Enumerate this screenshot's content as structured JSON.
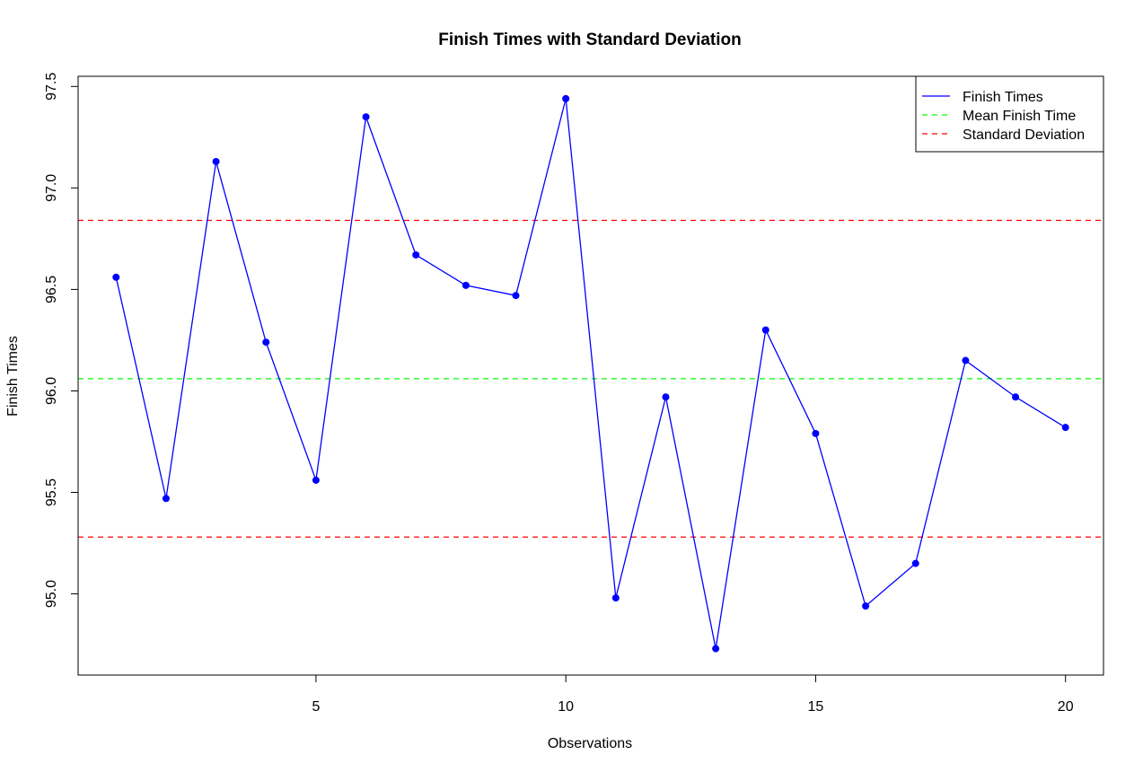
{
  "chart_data": {
    "type": "line",
    "title": "Finish Times with Standard Deviation",
    "xlabel": "Observations",
    "ylabel": "Finish Times",
    "xlim": [
      0.24,
      20.76
    ],
    "ylim": [
      94.6,
      97.55
    ],
    "xticks": [
      5,
      10,
      15,
      20
    ],
    "yticks": [
      95.0,
      95.5,
      96.0,
      96.5,
      97.0,
      97.5
    ],
    "ytick_labels": [
      "95.0",
      "95.5",
      "96.0",
      "96.5",
      "97.0",
      "97.5"
    ],
    "grid": false,
    "legend_position": "top-right",
    "series": [
      {
        "name": "Finish Times",
        "color": "#0000ff",
        "style": "line-with-points",
        "x": [
          1,
          2,
          3,
          4,
          5,
          6,
          7,
          8,
          9,
          10,
          11,
          12,
          13,
          14,
          15,
          16,
          17,
          18,
          19,
          20
        ],
        "y": [
          96.56,
          95.47,
          97.13,
          96.24,
          95.56,
          97.35,
          96.67,
          96.52,
          96.47,
          97.44,
          94.98,
          95.97,
          94.73,
          96.3,
          95.79,
          94.94,
          95.15,
          96.15,
          95.97,
          95.82
        ]
      }
    ],
    "hlines": [
      {
        "name": "Mean Finish Time",
        "color": "#00ff00",
        "style": "dashed",
        "y": 96.06
      },
      {
        "name": "Standard Deviation",
        "color": "#ff0000",
        "style": "dashed",
        "y": 96.84
      },
      {
        "name": "Standard Deviation",
        "color": "#ff0000",
        "style": "dashed",
        "y": 95.28
      }
    ],
    "legend": [
      {
        "label": "Finish Times",
        "color": "#0000ff",
        "style": "solid"
      },
      {
        "label": "Mean Finish Time",
        "color": "#00ff00",
        "style": "dashed"
      },
      {
        "label": "Standard Deviation",
        "color": "#ff0000",
        "style": "dashed"
      }
    ]
  }
}
